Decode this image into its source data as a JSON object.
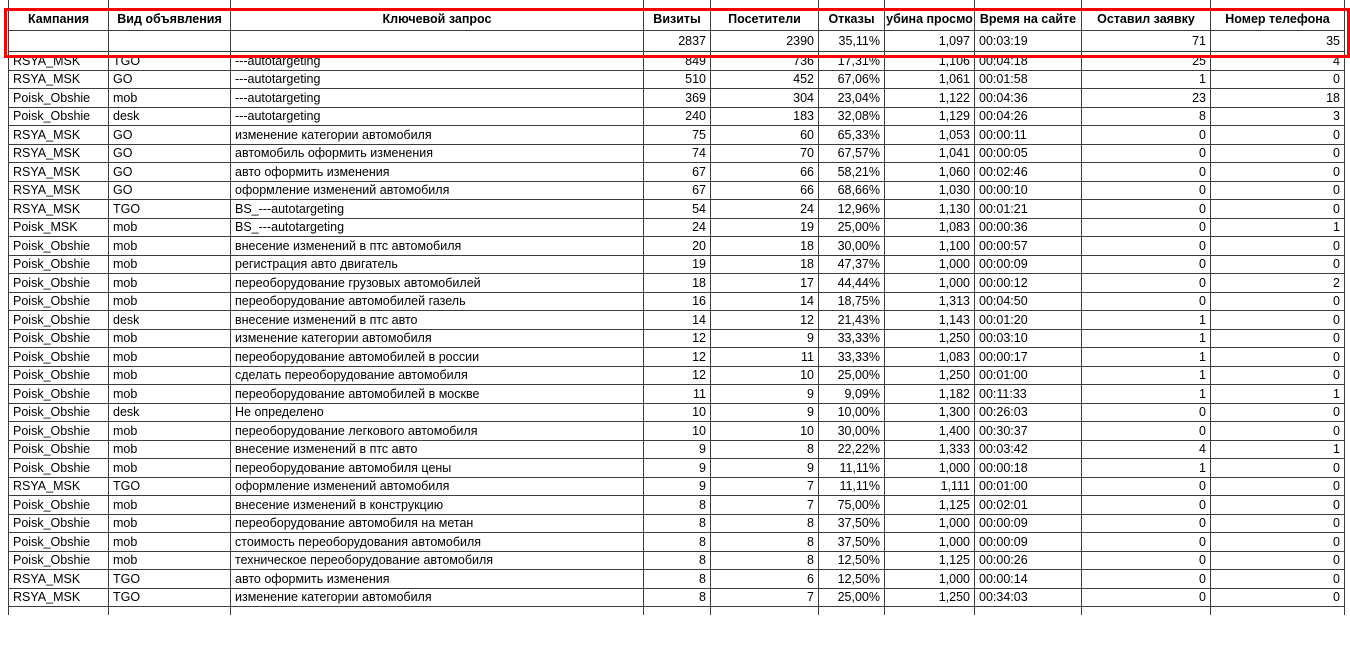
{
  "annotation": {
    "highlight_color": "#ff0000",
    "purpose": "red box around header and totals row"
  },
  "table": {
    "columns": [
      {
        "key": "campaign",
        "label": "Кампания",
        "align": "left"
      },
      {
        "key": "ad_type",
        "label": "Вид объявления",
        "align": "left"
      },
      {
        "key": "keyword",
        "label": "Ключевой запрос",
        "align": "left"
      },
      {
        "key": "visits",
        "label": "Визиты",
        "align": "right"
      },
      {
        "key": "visitors",
        "label": "Посетители",
        "align": "right"
      },
      {
        "key": "bounces",
        "label": "Отказы",
        "align": "right"
      },
      {
        "key": "view_depth",
        "label": "убина просмо",
        "align": "right"
      },
      {
        "key": "time_on_site",
        "label": "Время на сайте",
        "align": "left"
      },
      {
        "key": "left_request",
        "label": "Оставил заявку",
        "align": "right"
      },
      {
        "key": "phone_number",
        "label": "Номер телефона",
        "align": "right"
      }
    ],
    "total_row": [
      "",
      "",
      "",
      "2837",
      "2390",
      "35,11%",
      "1,097",
      "00:03:19",
      "71",
      "35"
    ],
    "rows": [
      [
        "RSYA_MSK",
        "TGO",
        "---autotargeting",
        "849",
        "736",
        "17,31%",
        "1,106",
        "00:04:18",
        "25",
        "4"
      ],
      [
        "RSYA_MSK",
        "GO",
        "---autotargeting",
        "510",
        "452",
        "67,06%",
        "1,061",
        "00:01:58",
        "1",
        "0"
      ],
      [
        "Poisk_Obshie",
        "mob",
        "---autotargeting",
        "369",
        "304",
        "23,04%",
        "1,122",
        "00:04:36",
        "23",
        "18"
      ],
      [
        "Poisk_Obshie",
        "desk",
        "---autotargeting",
        "240",
        "183",
        "32,08%",
        "1,129",
        "00:04:26",
        "8",
        "3"
      ],
      [
        "RSYA_MSK",
        "GO",
        "изменение категории автомобиля",
        "75",
        "60",
        "65,33%",
        "1,053",
        "00:00:11",
        "0",
        "0"
      ],
      [
        "RSYA_MSK",
        "GO",
        "автомобиль оформить изменения",
        "74",
        "70",
        "67,57%",
        "1,041",
        "00:00:05",
        "0",
        "0"
      ],
      [
        "RSYA_MSK",
        "GO",
        "авто оформить изменения",
        "67",
        "66",
        "58,21%",
        "1,060",
        "00:02:46",
        "0",
        "0"
      ],
      [
        "RSYA_MSK",
        "GO",
        "оформление изменений автомобиля",
        "67",
        "66",
        "68,66%",
        "1,030",
        "00:00:10",
        "0",
        "0"
      ],
      [
        "RSYA_MSK",
        "TGO",
        "BS_---autotargeting",
        "54",
        "24",
        "12,96%",
        "1,130",
        "00:01:21",
        "0",
        "0"
      ],
      [
        "Poisk_MSK",
        "mob",
        "BS_---autotargeting",
        "24",
        "19",
        "25,00%",
        "1,083",
        "00:00:36",
        "0",
        "1"
      ],
      [
        "Poisk_Obshie",
        "mob",
        "внесение изменений в птс автомобиля",
        "20",
        "18",
        "30,00%",
        "1,100",
        "00:00:57",
        "0",
        "0"
      ],
      [
        "Poisk_Obshie",
        "mob",
        "регистрация авто двигатель",
        "19",
        "18",
        "47,37%",
        "1,000",
        "00:00:09",
        "0",
        "0"
      ],
      [
        "Poisk_Obshie",
        "mob",
        "переоборудование грузовых автомобилей",
        "18",
        "17",
        "44,44%",
        "1,000",
        "00:00:12",
        "0",
        "2"
      ],
      [
        "Poisk_Obshie",
        "mob",
        "переоборудование автомобилей газель",
        "16",
        "14",
        "18,75%",
        "1,313",
        "00:04:50",
        "0",
        "0"
      ],
      [
        "Poisk_Obshie",
        "desk",
        "внесение изменений в птс авто",
        "14",
        "12",
        "21,43%",
        "1,143",
        "00:01:20",
        "1",
        "0"
      ],
      [
        "Poisk_Obshie",
        "mob",
        "изменение категории автомобиля",
        "12",
        "9",
        "33,33%",
        "1,250",
        "00:03:10",
        "1",
        "0"
      ],
      [
        "Poisk_Obshie",
        "mob",
        "переоборудование автомобилей в россии",
        "12",
        "11",
        "33,33%",
        "1,083",
        "00:00:17",
        "1",
        "0"
      ],
      [
        "Poisk_Obshie",
        "mob",
        "сделать переоборудование автомобиля",
        "12",
        "10",
        "25,00%",
        "1,250",
        "00:01:00",
        "1",
        "0"
      ],
      [
        "Poisk_Obshie",
        "mob",
        "переоборудование автомобилей в москве",
        "11",
        "9",
        "9,09%",
        "1,182",
        "00:11:33",
        "1",
        "1"
      ],
      [
        "Poisk_Obshie",
        "desk",
        "Не определено",
        "10",
        "9",
        "10,00%",
        "1,300",
        "00:26:03",
        "0",
        "0"
      ],
      [
        "Poisk_Obshie",
        "mob",
        "переоборудование легкового автомобиля",
        "10",
        "10",
        "30,00%",
        "1,400",
        "00:30:37",
        "0",
        "0"
      ],
      [
        "Poisk_Obshie",
        "mob",
        "внесение изменений в птс авто",
        "9",
        "8",
        "22,22%",
        "1,333",
        "00:03:42",
        "4",
        "1"
      ],
      [
        "Poisk_Obshie",
        "mob",
        "переоборудование автомобиля цены",
        "9",
        "9",
        "11,11%",
        "1,000",
        "00:00:18",
        "1",
        "0"
      ],
      [
        "RSYA_MSK",
        "TGO",
        "оформление изменений автомобиля",
        "9",
        "7",
        "11,11%",
        "1,111",
        "00:01:00",
        "0",
        "0"
      ],
      [
        "Poisk_Obshie",
        "mob",
        "внесение изменений в конструкцию",
        "8",
        "7",
        "75,00%",
        "1,125",
        "00:02:01",
        "0",
        "0"
      ],
      [
        "Poisk_Obshie",
        "mob",
        "переоборудование автомобиля на метан",
        "8",
        "8",
        "37,50%",
        "1,000",
        "00:00:09",
        "0",
        "0"
      ],
      [
        "Poisk_Obshie",
        "mob",
        "стоимость переоборудования автомобиля",
        "8",
        "8",
        "37,50%",
        "1,000",
        "00:00:09",
        "0",
        "0"
      ],
      [
        "Poisk_Obshie",
        "mob",
        "техническое переоборудование автомобиля",
        "8",
        "8",
        "12,50%",
        "1,125",
        "00:00:26",
        "0",
        "0"
      ],
      [
        "RSYA_MSK",
        "TGO",
        "авто оформить изменения",
        "8",
        "6",
        "12,50%",
        "1,000",
        "00:00:14",
        "0",
        "0"
      ],
      [
        "RSYA_MSK",
        "TGO",
        "изменение категории автомобиля",
        "8",
        "7",
        "25,00%",
        "1,250",
        "00:34:03",
        "0",
        "0"
      ]
    ]
  }
}
